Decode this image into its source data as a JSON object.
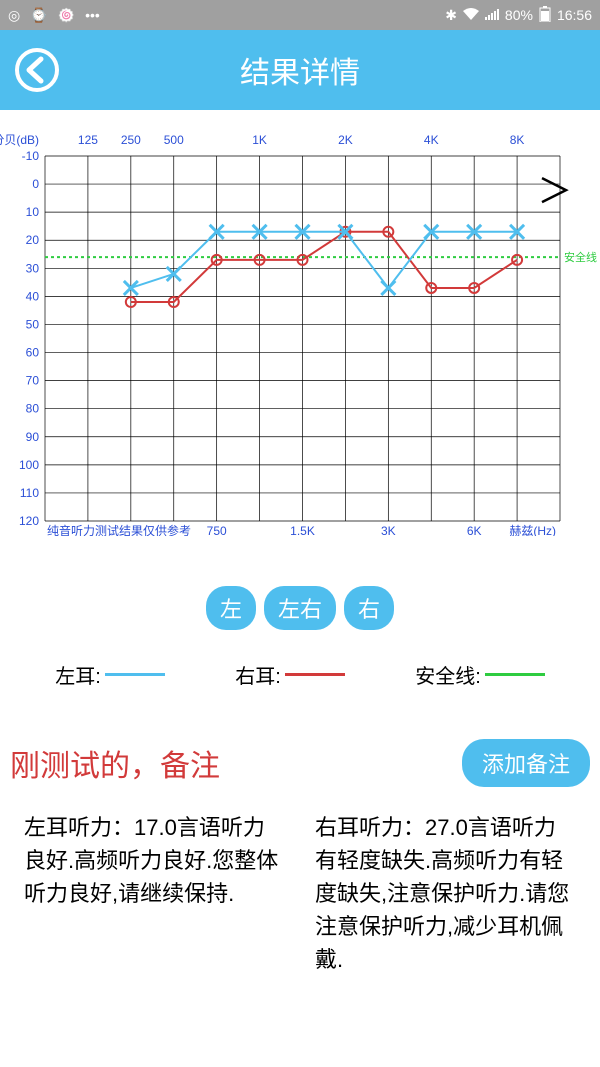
{
  "statusbar": {
    "battery": "80%",
    "time": "16:56"
  },
  "header": {
    "title": "结果详情"
  },
  "chart": {
    "type": "line",
    "y_label_top": "分贝(dB)",
    "x_label_bottom_right": "赫兹(Hz)",
    "footer_note": "纯音听力测试结果仅供参考",
    "safety_label": "安全线",
    "ylim": [
      -10,
      120
    ],
    "y_ticks": [
      -10,
      0,
      10,
      20,
      30,
      40,
      50,
      60,
      70,
      80,
      90,
      100,
      110,
      120
    ],
    "x_top_ticks": [
      "125",
      "250",
      "500",
      "1K",
      "2K",
      "4K",
      "8K"
    ],
    "x_bottom_ticks": [
      "750",
      "1.5K",
      "3K",
      "6K"
    ],
    "grid_color": "#000000",
    "background_color": "#ffffff",
    "safety_line": {
      "y": 26,
      "color": "#2ecc40",
      "dash": "3,3"
    },
    "left_series": {
      "color": "#4fbeee",
      "marker": "x",
      "values": [
        {
          "x": "250",
          "y": 37
        },
        {
          "x": "500",
          "y": 32
        },
        {
          "x": "750",
          "y": 17
        },
        {
          "x": "1K",
          "y": 17
        },
        {
          "x": "1.5K",
          "y": 17
        },
        {
          "x": "2K",
          "y": 17
        },
        {
          "x": "3K",
          "y": 37
        },
        {
          "x": "4K",
          "y": 17
        },
        {
          "x": "6K",
          "y": 17
        },
        {
          "x": "8K",
          "y": 17
        }
      ]
    },
    "right_series": {
      "color": "#d23a3a",
      "marker": "circle",
      "values": [
        {
          "x": "250",
          "y": 42
        },
        {
          "x": "500",
          "y": 42
        },
        {
          "x": "750",
          "y": 27
        },
        {
          "x": "1K",
          "y": 27
        },
        {
          "x": "1.5K",
          "y": 27
        },
        {
          "x": "2K",
          "y": 17
        },
        {
          "x": "3K",
          "y": 17
        },
        {
          "x": "4K",
          "y": 37
        },
        {
          "x": "6K",
          "y": 37
        },
        {
          "x": "8K",
          "y": 27
        }
      ]
    }
  },
  "selector": {
    "left": "左",
    "both": "左右",
    "right": "右"
  },
  "legend": {
    "left_ear": "左耳:",
    "right_ear": "右耳:",
    "safety": "安全线:",
    "left_color": "#4fbeee",
    "right_color": "#d23a3a",
    "safety_color": "#2ecc40"
  },
  "remark": {
    "title": "刚测试的，备注",
    "button": "添加备注"
  },
  "results": {
    "left": "左耳听力：17.0言语听力良好.高频听力良好.您整体听力良好,请继续保持.",
    "right": "右耳听力：27.0言语听力有轻度缺失.高频听力有轻度缺失,注意保护听力.请您注意保护听力,减少耳机佩戴."
  }
}
